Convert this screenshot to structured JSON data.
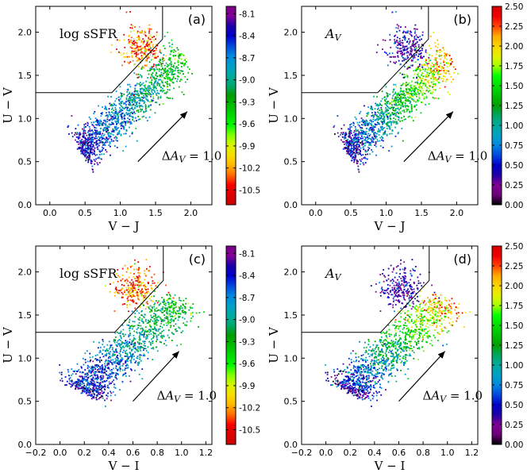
{
  "chart_data": [
    {
      "type": "scatter",
      "panel_label": "(a)",
      "quantity_label": "log sSFR",
      "xlabel": "V − J",
      "ylabel": "U − V",
      "xlim": [
        -0.2,
        2.3
      ],
      "ylim": [
        0.0,
        2.3
      ],
      "xticks": [
        0.0,
        0.5,
        1.0,
        1.5,
        2.0
      ],
      "xtick_labels": [
        "0.0",
        "0.5",
        "1.0",
        "1.5",
        "2.0"
      ],
      "yticks": [
        0.0,
        0.5,
        1.0,
        1.5,
        2.0
      ],
      "ytick_labels": [
        "0.0",
        "0.5",
        "1.0",
        "1.5",
        "2.0"
      ],
      "selection_box": [
        [
          -0.2,
          1.3
        ],
        [
          0.88,
          1.3
        ],
        [
          1.6,
          1.92
        ],
        [
          1.6,
          2.3
        ]
      ],
      "arrow": {
        "from": [
          1.25,
          0.5
        ],
        "to": [
          1.95,
          1.08
        ],
        "label": "ΔA_V = 1.0"
      },
      "colorbar": {
        "label_values": [
          "-8.1",
          "-8.4",
          "-8.7",
          "-9.0",
          "-9.3",
          "-9.6",
          "-9.9",
          "-10.2",
          "-10.5"
        ],
        "range": [
          -10.7,
          -8.0
        ],
        "colormap": "nipy_spectral_reversed"
      },
      "point_distribution": "star-forming sequence from (0.45, 0.6) to (1.9, 1.75) with quiescent clump near (1.3, 1.85)"
    },
    {
      "type": "scatter",
      "panel_label": "(b)",
      "quantity_label": "A_V",
      "xlabel": "V − J",
      "ylabel": "U − V",
      "xlim": [
        -0.2,
        2.3
      ],
      "ylim": [
        0.0,
        2.3
      ],
      "xticks": [
        0.0,
        0.5,
        1.0,
        1.5,
        2.0
      ],
      "xtick_labels": [
        "0.0",
        "0.5",
        "1.0",
        "1.5",
        "2.0"
      ],
      "yticks": [
        0.0,
        0.5,
        1.0,
        1.5,
        2.0
      ],
      "ytick_labels": [
        "0.0",
        "0.5",
        "1.0",
        "1.5",
        "2.0"
      ],
      "selection_box": [
        [
          -0.2,
          1.3
        ],
        [
          0.88,
          1.3
        ],
        [
          1.6,
          1.92
        ],
        [
          1.6,
          2.3
        ]
      ],
      "arrow": {
        "from": [
          1.25,
          0.5
        ],
        "to": [
          1.95,
          1.08
        ],
        "label": "ΔA_V = 1.0"
      },
      "colorbar": {
        "label_values": [
          "0.00",
          "0.25",
          "0.50",
          "0.75",
          "1.00",
          "1.25",
          "1.50",
          "1.75",
          "2.00",
          "2.25",
          "2.50"
        ],
        "range": [
          0.0,
          2.5
        ],
        "colormap": "nipy_spectral"
      },
      "point_distribution": "same distribution as (a), colored by dust attenuation"
    },
    {
      "type": "scatter",
      "panel_label": "(c)",
      "quantity_label": "log sSFR",
      "xlabel": "V − I",
      "ylabel": "U − V",
      "xlim": [
        -0.2,
        1.25
      ],
      "ylim": [
        0.0,
        2.3
      ],
      "xticks": [
        -0.2,
        0.0,
        0.2,
        0.4,
        0.6,
        0.8,
        1.0,
        1.2
      ],
      "xtick_labels": [
        "−0.2",
        "0.0",
        "0.2",
        "0.4",
        "0.6",
        "0.8",
        "1.0",
        "1.2"
      ],
      "yticks": [
        0.0,
        0.5,
        1.0,
        1.5,
        2.0
      ],
      "ytick_labels": [
        "0.0",
        "0.5",
        "1.0",
        "1.5",
        "2.0"
      ],
      "selection_box": [
        [
          -0.2,
          1.3
        ],
        [
          0.45,
          1.3
        ],
        [
          0.85,
          1.9
        ],
        [
          0.85,
          2.3
        ]
      ],
      "arrow": {
        "from": [
          0.6,
          0.5
        ],
        "to": [
          0.98,
          1.08
        ],
        "label": "ΔA_V = 1.0"
      },
      "colorbar": {
        "label_values": [
          "-8.1",
          "-8.4",
          "-8.7",
          "-9.0",
          "-9.3",
          "-9.6",
          "-9.9",
          "-10.2",
          "-10.5"
        ],
        "range": [
          -10.7,
          -8.0
        ],
        "colormap": "nipy_spectral_reversed"
      },
      "point_distribution": "star-forming sequence from (0.2, 0.6) to (1.0, 1.7) with quiescent clump near (0.65, 1.85)"
    },
    {
      "type": "scatter",
      "panel_label": "(d)",
      "quantity_label": "A_V",
      "xlabel": "V − I",
      "ylabel": "U − V",
      "xlim": [
        -0.2,
        1.25
      ],
      "ylim": [
        0.0,
        2.3
      ],
      "xticks": [
        -0.2,
        0.0,
        0.2,
        0.4,
        0.6,
        0.8,
        1.0,
        1.2
      ],
      "xtick_labels": [
        "−0.2",
        "0.0",
        "0.2",
        "0.4",
        "0.6",
        "0.8",
        "1.0",
        "1.2"
      ],
      "yticks": [
        0.0,
        0.5,
        1.0,
        1.5,
        2.0
      ],
      "ytick_labels": [
        "0.0",
        "0.5",
        "1.0",
        "1.5",
        "2.0"
      ],
      "selection_box": [
        [
          -0.2,
          1.3
        ],
        [
          0.45,
          1.3
        ],
        [
          0.85,
          1.9
        ],
        [
          0.85,
          2.3
        ]
      ],
      "arrow": {
        "from": [
          0.6,
          0.5
        ],
        "to": [
          0.98,
          1.08
        ],
        "label": "ΔA_V = 1.0"
      },
      "colorbar": {
        "label_values": [
          "0.00",
          "0.25",
          "0.50",
          "0.75",
          "1.00",
          "1.25",
          "1.50",
          "1.75",
          "2.00",
          "2.25",
          "2.50"
        ],
        "range": [
          0.0,
          2.5
        ],
        "colormap": "nipy_spectral"
      },
      "point_distribution": "same distribution as (c), colored by dust attenuation"
    }
  ]
}
